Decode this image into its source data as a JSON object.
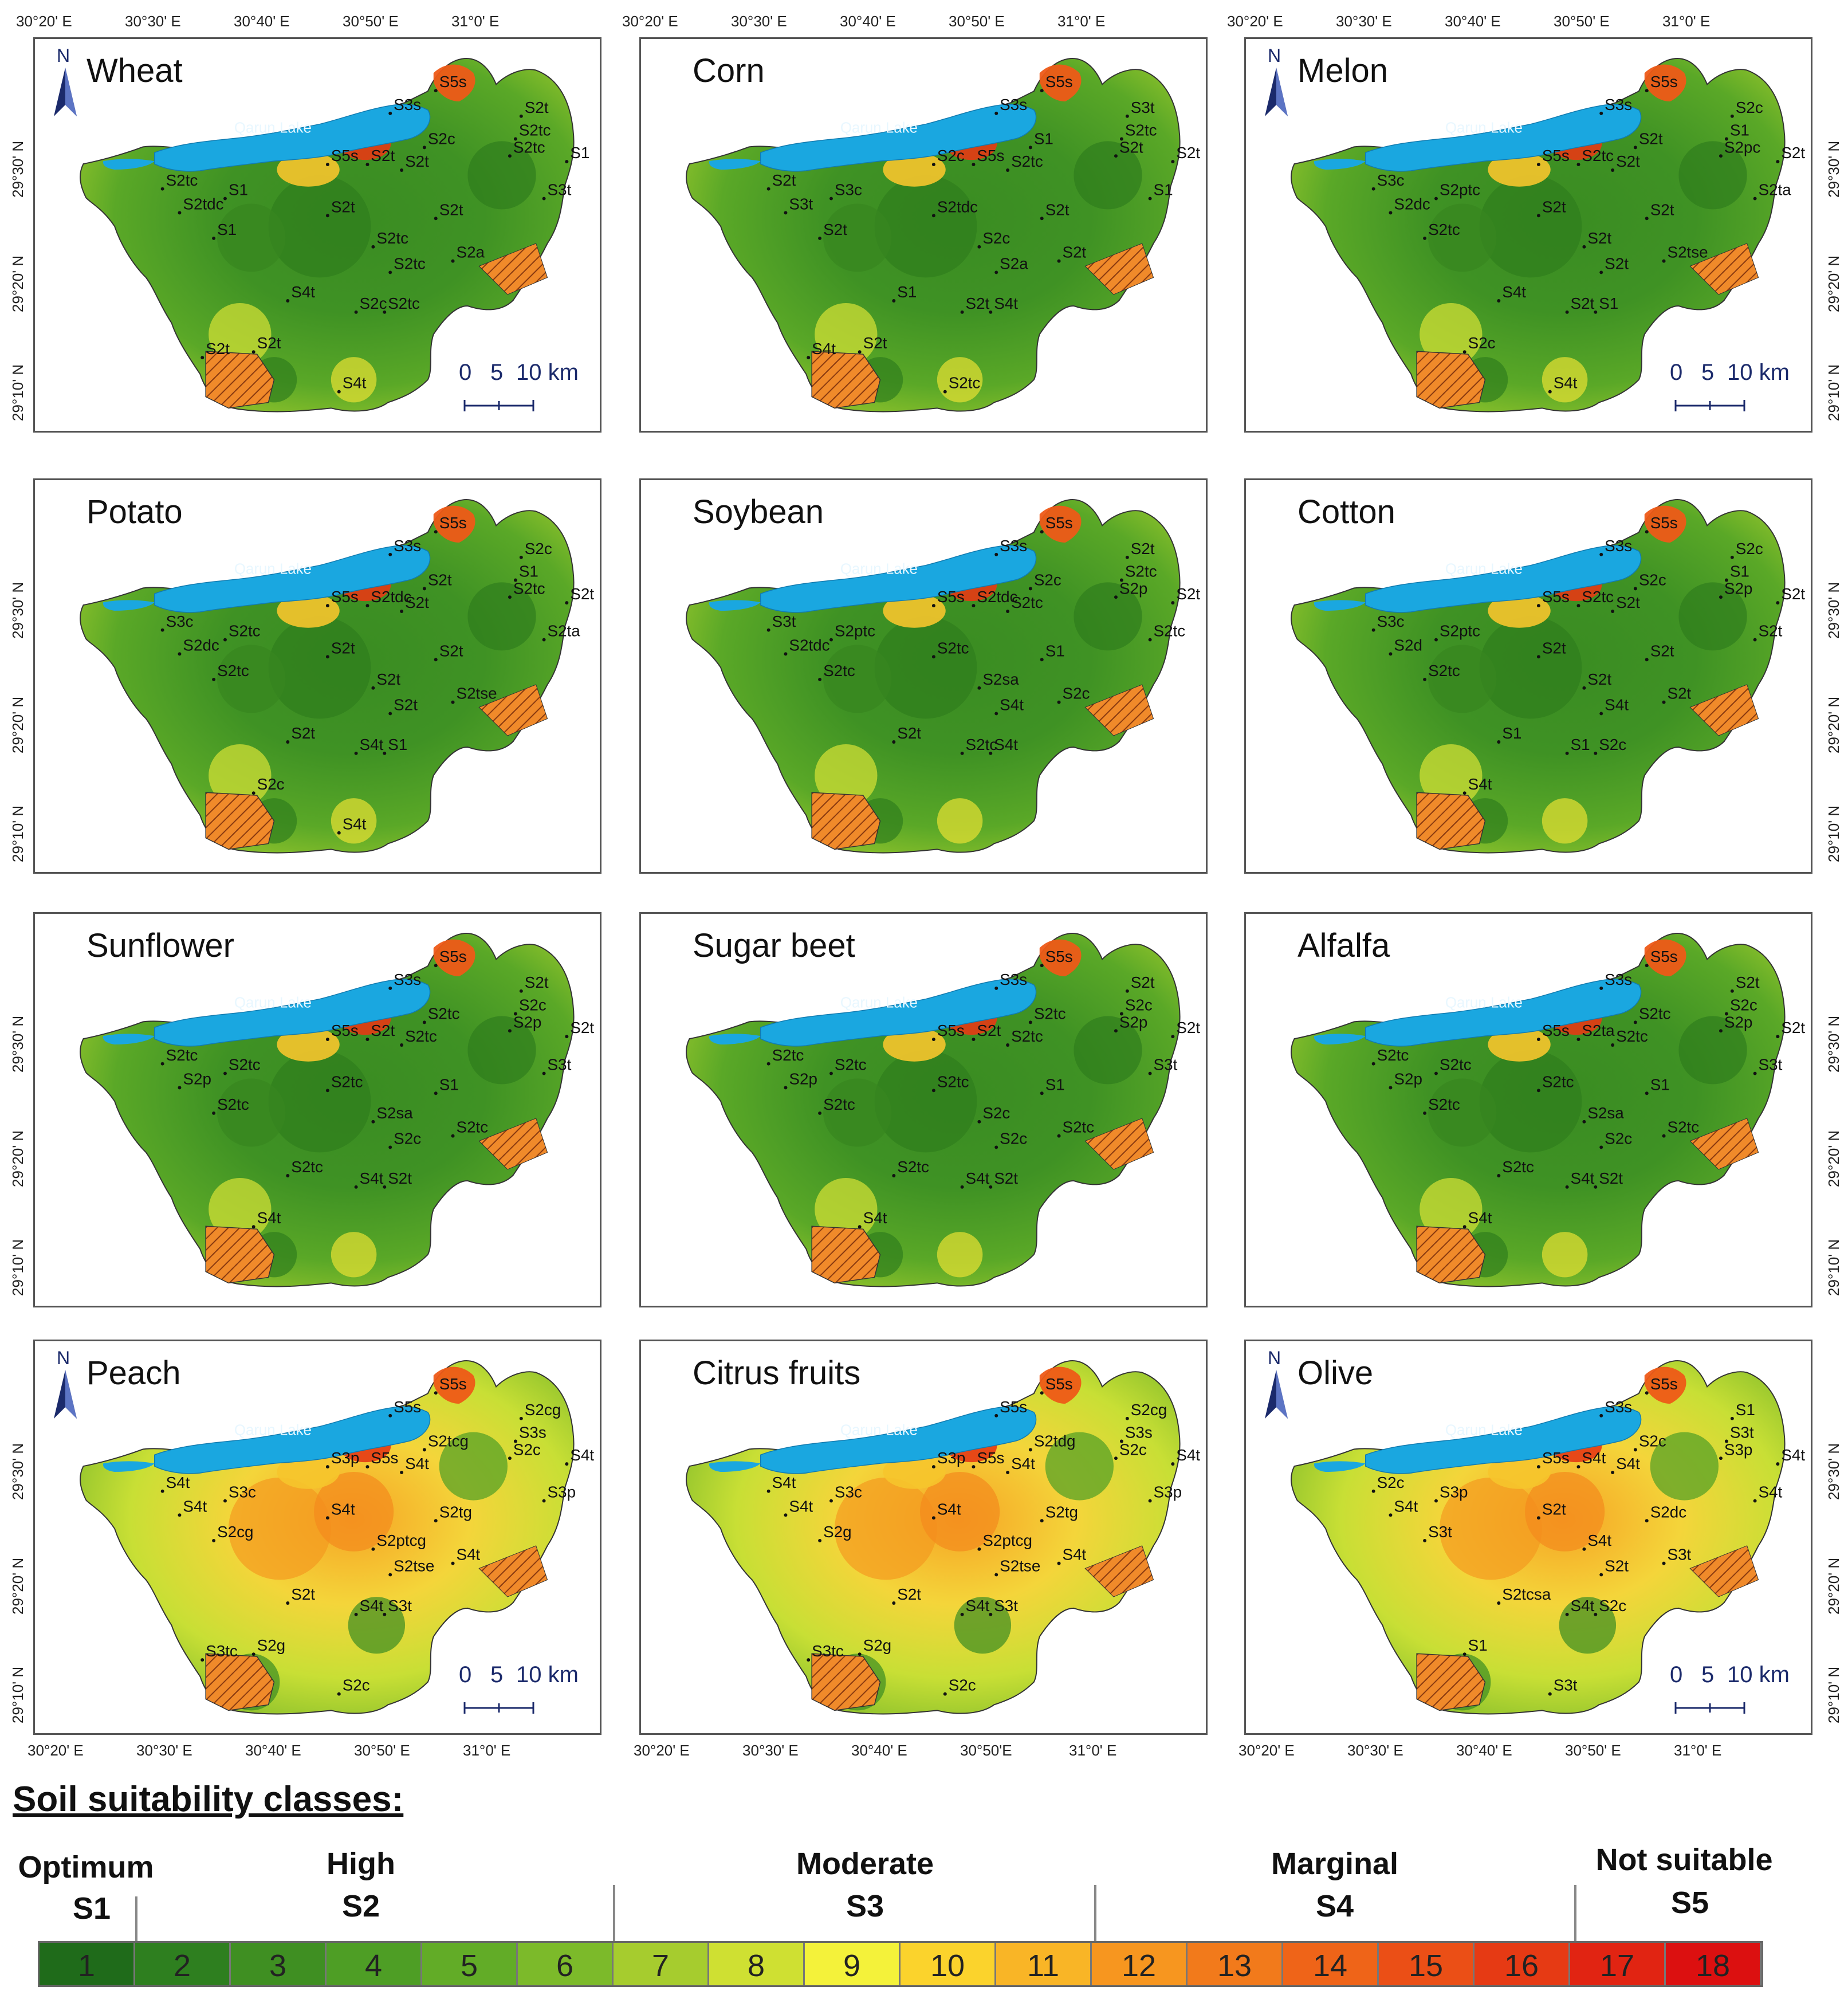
{
  "top_ticks": [
    "30°20' E",
    "30°30' E",
    "30°40' E",
    "30°50' E",
    "31°0' E"
  ],
  "bottom_ticks": [
    "30°20' E",
    "30°30' E",
    "30°40' E",
    "30°50' E",
    "31°0' E"
  ],
  "bottom_ticks_mid": [
    "30°20' E",
    "30°30' E",
    "30°40' E",
    "30°50'E",
    "31°0' E"
  ],
  "lat_ticks": [
    "29°30' N",
    "29°20' N",
    "29°10' N"
  ],
  "lake_label": "Qarun Lake",
  "north_label": "N",
  "scale": {
    "zero": "0",
    "five": "5",
    "ten": "10 km"
  },
  "panels": [
    {
      "title": "Wheat",
      "labels": [
        "S5s",
        "S2t",
        "S3s",
        "S2tc",
        "S2c",
        "S2tc",
        "S5s",
        "S2t",
        "S2t",
        "S1",
        "S2tc",
        "S1",
        "S3t",
        "S2tdc",
        "S2t",
        "S2t",
        "S1",
        "S2tc",
        "S2a",
        "S2tc",
        "S2c",
        "S4t",
        "S2tc",
        "S2t",
        "S4t",
        "S2t"
      ]
    },
    {
      "title": "Corn",
      "labels": [
        "S5s",
        "S3t",
        "S3s",
        "S2tc",
        "S1",
        "S2t",
        "S2c",
        "S5s",
        "S2tc",
        "S2t",
        "S2t",
        "S3c",
        "S1",
        "S3t",
        "S2tdc",
        "S2t",
        "S2t",
        "S2c",
        "S2t",
        "S2a",
        "S2t",
        "S1",
        "S4t",
        "S2t",
        "S2tc",
        "S4t"
      ]
    },
    {
      "title": "Melon",
      "labels": [
        "S5s",
        "S2c",
        "S3s",
        "S1",
        "S2t",
        "S2pc",
        "S5s",
        "S2tc",
        "S2t",
        "S2t",
        "S3c",
        "S2ptc",
        "S2ta",
        "S2dc",
        "S2t",
        "S2t",
        "S2tc",
        "S2t",
        "S2tse",
        "S2t",
        "S2t",
        "S4t",
        "S1",
        "S2c",
        "S4t"
      ]
    },
    {
      "title": "Potato",
      "labels": [
        "S5s",
        "S2c",
        "S3s",
        "S1",
        "S2t",
        "S2tc",
        "S5s",
        "S2tdc",
        "S2t",
        "S2t",
        "S3c",
        "S2tc",
        "S2ta",
        "S2dc",
        "S2t",
        "S2t",
        "S2tc",
        "S2t",
        "S2tse",
        "S2t",
        "S4t",
        "S2t",
        "S1",
        "S2c",
        "S4t"
      ]
    },
    {
      "title": "Soybean",
      "labels": [
        "S5s",
        "S2t",
        "S3s",
        "S2tc",
        "S2c",
        "S2p",
        "S5s",
        "S2tdc",
        "S2tc",
        "S2t",
        "S3t",
        "S2ptc",
        "S2tc",
        "S2tdc",
        "S2tc",
        "S1",
        "S2tc",
        "S2sa",
        "S2c",
        "S4t",
        "S2tc",
        "S2t",
        "S4t"
      ]
    },
    {
      "title": "Cotton",
      "labels": [
        "S5s",
        "S2c",
        "S3s",
        "S1",
        "S2c",
        "S2p",
        "S5s",
        "S2tc",
        "S2t",
        "S2t",
        "S3c",
        "S2ptc",
        "S2t",
        "S2d",
        "S2t",
        "S2t",
        "S2tc",
        "S2t",
        "S2t",
        "S4t",
        "S1",
        "S1",
        "S2c",
        "S4t"
      ]
    },
    {
      "title": "Sunflower",
      "labels": [
        "S5s",
        "S2t",
        "S3s",
        "S2c",
        "S2tc",
        "S2p",
        "S5s",
        "S2t",
        "S2tc",
        "S2t",
        "S2tc",
        "S2tc",
        "S3t",
        "S2p",
        "S2tc",
        "S1",
        "S2tc",
        "S2sa",
        "S2tc",
        "S2c",
        "S4t",
        "S2tc",
        "S2t",
        "S4t"
      ]
    },
    {
      "title": "Sugar beet",
      "labels": [
        "S5s",
        "S2t",
        "S3s",
        "S2c",
        "S2tc",
        "S2p",
        "S5s",
        "S2t",
        "S2tc",
        "S2t",
        "S2tc",
        "S2tc",
        "S3t",
        "S2p",
        "S2tc",
        "S1",
        "S2tc",
        "S2c",
        "S2tc",
        "S2c",
        "S4t",
        "S2tc",
        "S2t",
        "S4t"
      ]
    },
    {
      "title": "Alfalfa",
      "labels": [
        "S5s",
        "S2t",
        "S3s",
        "S2c",
        "S2tc",
        "S2p",
        "S5s",
        "S2ta",
        "S2tc",
        "S2t",
        "S2tc",
        "S2tc",
        "S3t",
        "S2p",
        "S2tc",
        "S1",
        "S2tc",
        "S2sa",
        "S2tc",
        "S2c",
        "S4t",
        "S2tc",
        "S2t",
        "S4t"
      ]
    },
    {
      "title": "Peach",
      "labels": [
        "S5s",
        "S2cg",
        "S5s",
        "S3s",
        "S2tcg",
        "S2c",
        "S3p",
        "S5s",
        "S4t",
        "S4t",
        "S4t",
        "S3c",
        "S3p",
        "S4t",
        "S4t",
        "S2tg",
        "S2cg",
        "S2ptcg",
        "S4t",
        "S2tse",
        "S4t",
        "S2t",
        "S3t",
        "S2g",
        "S2c",
        "S3tc"
      ]
    },
    {
      "title": "Citrus fruits",
      "labels": [
        "S5s",
        "S2cg",
        "S5s",
        "S3s",
        "S2tdg",
        "S2c",
        "S3p",
        "S5s",
        "S4t",
        "S4t",
        "S4t",
        "S3c",
        "S3p",
        "S4t",
        "S4t",
        "S2tg",
        "S2g",
        "S2ptcg",
        "S4t",
        "S2tse",
        "S4t",
        "S2t",
        "S3t",
        "S2g",
        "S2c",
        "S3tc"
      ]
    },
    {
      "title": "Olive",
      "labels": [
        "S5s",
        "S1",
        "S3s",
        "S3t",
        "S2c",
        "S3p",
        "S5s",
        "S4t",
        "S4t",
        "S4t",
        "S2c",
        "S3p",
        "S4t",
        "S4t",
        "S2t",
        "S2dc",
        "S3t",
        "S4t",
        "S3t",
        "S2t",
        "S4t",
        "S2tcsa",
        "S2c",
        "S1",
        "S3t"
      ]
    }
  ],
  "legend": {
    "title": "Soil suitability classes:",
    "classes": [
      {
        "name": "Optimum",
        "code": "S1"
      },
      {
        "name": "High",
        "code": "S2"
      },
      {
        "name": "Moderate",
        "code": "S3"
      },
      {
        "name": "Marginal",
        "code": "S4"
      },
      {
        "name": "Not suitable",
        "code": "S5"
      }
    ],
    "cells": [
      "1",
      "2",
      "3",
      "4",
      "5",
      "6",
      "7",
      "8",
      "9",
      "10",
      "11",
      "12",
      "13",
      "14",
      "15",
      "16",
      "17",
      "18"
    ],
    "colors": [
      "#1f6b1a",
      "#2e7f1f",
      "#3f8f22",
      "#4e9e25",
      "#62ac27",
      "#7cba2a",
      "#a6cc2e",
      "#cfe032",
      "#f4f23a",
      "#fbd32c",
      "#f9b526",
      "#f7961f",
      "#f27a1b",
      "#ef6418",
      "#eb4f16",
      "#e63a14",
      "#e12412",
      "#dc1010"
    ]
  }
}
